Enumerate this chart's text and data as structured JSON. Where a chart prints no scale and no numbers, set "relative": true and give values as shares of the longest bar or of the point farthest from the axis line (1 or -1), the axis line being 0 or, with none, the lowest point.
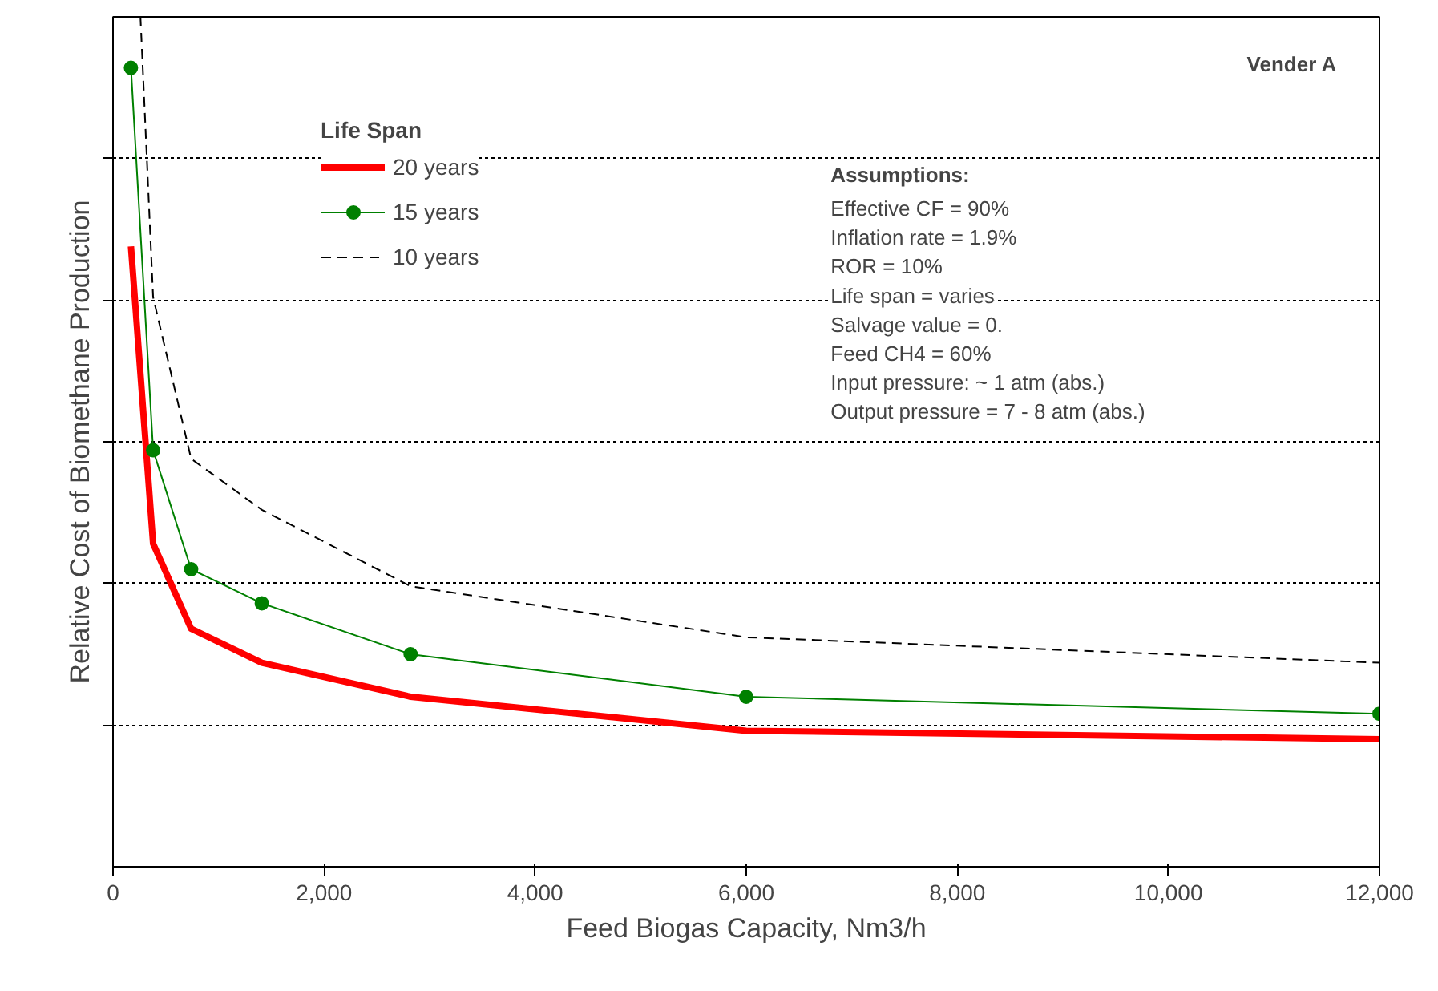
{
  "chart_data": {
    "type": "line",
    "relative": true,
    "xlabel": "Feed Biogas Capacity, Nm3/h",
    "ylabel": "Relative Cost of Biomethane Production",
    "legend_title": "Life Span",
    "legend": "top left",
    "grid": "y",
    "xlim": [
      0,
      12000
    ],
    "xticks": [
      {
        "value": 0,
        "label": "0"
      },
      {
        "value": 2000,
        "label": "2,000"
      },
      {
        "value": 4000,
        "label": "4,000"
      },
      {
        "value": 6000,
        "label": "6,000"
      },
      {
        "value": 8000,
        "label": "8,000"
      },
      {
        "value": 10000,
        "label": "10,000"
      },
      {
        "value": 12000,
        "label": "12,000"
      }
    ],
    "annotations": [
      "Vender A",
      "Assumptions:",
      "Effective CF = 90%",
      "Inflation rate = 1.9%",
      "ROR = 10%",
      "Life span = varies",
      "Salvage value = 0.",
      "Feed CH4 = 60%",
      "Input pressure:  ~ 1 atm (abs.)",
      "Output pressure = 7 - 8 atm (abs.)"
    ],
    "series": [
      {
        "name": "20 years",
        "color": "#ff0000",
        "line_style": "solid",
        "marker": "none",
        "x": [
          170,
          380,
          740,
          1410,
          2820,
          6000,
          12000
        ],
        "values": [
          0.73,
          0.38,
          0.28,
          0.24,
          0.2,
          0.16,
          0.15
        ]
      },
      {
        "name": "15 years",
        "color": "#008000",
        "line_style": "solid",
        "marker": "circle",
        "x": [
          170,
          380,
          740,
          1410,
          2820,
          6000,
          12000
        ],
        "values": [
          0.94,
          0.49,
          0.35,
          0.31,
          0.25,
          0.2,
          0.18
        ]
      },
      {
        "name": "10 years",
        "color": "#000000",
        "line_style": "dashed",
        "marker": "none",
        "x": [
          260,
          380,
          740,
          1410,
          2820,
          6000,
          12000
        ],
        "values": [
          1.0,
          0.67,
          0.48,
          0.42,
          0.33,
          0.27,
          0.24
        ]
      }
    ]
  }
}
